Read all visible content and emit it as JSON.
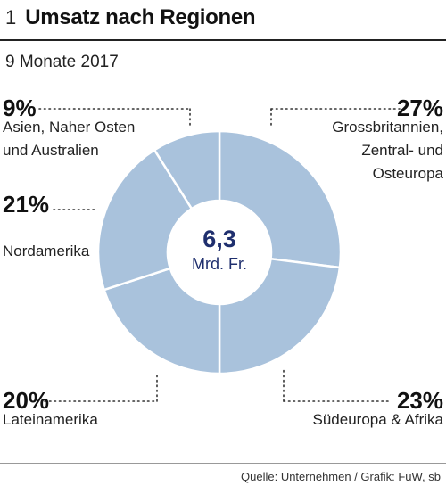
{
  "figure_number": "1",
  "title": "Umsatz nach Regionen",
  "subtitle": "9 Monate 2017",
  "source": "Quelle: Unternehmen / Grafik: FuW, sb",
  "colors": {
    "segment": "#a9c2dc",
    "segment_stroke": "#ffffff",
    "center_text": "#1f2f6e",
    "leader": "#333333"
  },
  "chart_data": {
    "type": "pie",
    "style": "donut",
    "center_value": "6,3",
    "center_unit": "Mrd. Fr.",
    "slices": [
      {
        "value": 27,
        "pct_label": "27%",
        "label_lines": [
          "Grossbritannien,",
          "Zentral- und",
          "Osteuropa"
        ]
      },
      {
        "value": 23,
        "pct_label": "23%",
        "label_lines": [
          "Südeuropa & Afrika"
        ]
      },
      {
        "value": 20,
        "pct_label": "20%",
        "label_lines": [
          "Lateinamerika"
        ]
      },
      {
        "value": 21,
        "pct_label": "21%",
        "label_lines": [
          "Nordamerika"
        ]
      },
      {
        "value": 9,
        "pct_label": "9%",
        "label_lines": [
          "Asien, Naher Osten",
          "und Australien"
        ]
      }
    ]
  }
}
